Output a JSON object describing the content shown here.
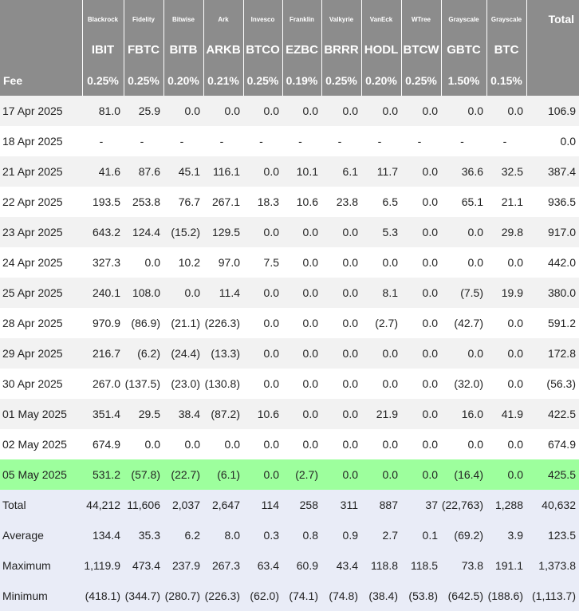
{
  "table": {
    "columns": [
      {
        "provider": "Blackrock",
        "ticker": "IBIT",
        "fee": "0.25%"
      },
      {
        "provider": "Fidelity",
        "ticker": "FBTC",
        "fee": "0.25%"
      },
      {
        "provider": "Bitwise",
        "ticker": "BITB",
        "fee": "0.20%"
      },
      {
        "provider": "Ark",
        "ticker": "ARKB",
        "fee": "0.21%"
      },
      {
        "provider": "Invesco",
        "ticker": "BTCO",
        "fee": "0.25%"
      },
      {
        "provider": "Franklin",
        "ticker": "EZBC",
        "fee": "0.19%"
      },
      {
        "provider": "Valkyrie",
        "ticker": "BRRR",
        "fee": "0.25%"
      },
      {
        "provider": "VanEck",
        "ticker": "HODL",
        "fee": "0.20%"
      },
      {
        "provider": "WTree",
        "ticker": "BTCW",
        "fee": "0.25%"
      },
      {
        "provider": "Grayscale",
        "ticker": "GBTC",
        "fee": "1.50%"
      },
      {
        "provider": "Grayscale",
        "ticker": "BTC",
        "fee": "0.15%"
      }
    ],
    "total_label": "Total",
    "fee_label": "Fee",
    "rows": [
      {
        "date": "17 Apr 2025",
        "values": [
          "81.0",
          "25.9",
          "0.0",
          "0.0",
          "0.0",
          "0.0",
          "0.0",
          "0.0",
          "0.0",
          "0.0",
          "0.0"
        ],
        "total": "106.9"
      },
      {
        "date": "18 Apr 2025",
        "values": [
          "-",
          "-",
          "-",
          "-",
          "-",
          "-",
          "-",
          "-",
          "-",
          "-",
          "-"
        ],
        "total": "0.0"
      },
      {
        "date": "21 Apr 2025",
        "values": [
          "41.6",
          "87.6",
          "45.1",
          "116.1",
          "0.0",
          "10.1",
          "6.1",
          "11.7",
          "0.0",
          "36.6",
          "32.5"
        ],
        "total": "387.4"
      },
      {
        "date": "22 Apr 2025",
        "values": [
          "193.5",
          "253.8",
          "76.7",
          "267.1",
          "18.3",
          "10.6",
          "23.8",
          "6.5",
          "0.0",
          "65.1",
          "21.1"
        ],
        "total": "936.5"
      },
      {
        "date": "23 Apr 2025",
        "values": [
          "643.2",
          "124.4",
          "(15.2)",
          "129.5",
          "0.0",
          "0.0",
          "0.0",
          "5.3",
          "0.0",
          "0.0",
          "29.8"
        ],
        "total": "917.0"
      },
      {
        "date": "24 Apr 2025",
        "values": [
          "327.3",
          "0.0",
          "10.2",
          "97.0",
          "7.5",
          "0.0",
          "0.0",
          "0.0",
          "0.0",
          "0.0",
          "0.0"
        ],
        "total": "442.0"
      },
      {
        "date": "25 Apr 2025",
        "values": [
          "240.1",
          "108.0",
          "0.0",
          "11.4",
          "0.0",
          "0.0",
          "0.0",
          "8.1",
          "0.0",
          "(7.5)",
          "19.9"
        ],
        "total": "380.0"
      },
      {
        "date": "28 Apr 2025",
        "values": [
          "970.9",
          "(86.9)",
          "(21.1)",
          "(226.3)",
          "0.0",
          "0.0",
          "0.0",
          "(2.7)",
          "0.0",
          "(42.7)",
          "0.0"
        ],
        "total": "591.2"
      },
      {
        "date": "29 Apr 2025",
        "values": [
          "216.7",
          "(6.2)",
          "(24.4)",
          "(13.3)",
          "0.0",
          "0.0",
          "0.0",
          "0.0",
          "0.0",
          "0.0",
          "0.0"
        ],
        "total": "172.8"
      },
      {
        "date": "30 Apr 2025",
        "values": [
          "267.0",
          "(137.5)",
          "(23.0)",
          "(130.8)",
          "0.0",
          "0.0",
          "0.0",
          "0.0",
          "0.0",
          "(32.0)",
          "0.0"
        ],
        "total": "(56.3)"
      },
      {
        "date": "01 May 2025",
        "values": [
          "351.4",
          "29.5",
          "38.4",
          "(87.2)",
          "10.6",
          "0.0",
          "0.0",
          "21.9",
          "0.0",
          "16.0",
          "41.9"
        ],
        "total": "422.5"
      },
      {
        "date": "02 May 2025",
        "values": [
          "674.9",
          "0.0",
          "0.0",
          "0.0",
          "0.0",
          "0.0",
          "0.0",
          "0.0",
          "0.0",
          "0.0",
          "0.0"
        ],
        "total": "674.9"
      },
      {
        "date": "05 May 2025",
        "values": [
          "531.2",
          "(57.8)",
          "(22.7)",
          "(6.1)",
          "0.0",
          "(2.7)",
          "0.0",
          "0.0",
          "0.0",
          "(16.4)",
          "0.0"
        ],
        "total": "425.5",
        "highlight": true
      }
    ],
    "stats": [
      {
        "label": "Total",
        "values": [
          "44,212",
          "11,606",
          "2,037",
          "2,647",
          "114",
          "258",
          "311",
          "887",
          "37",
          "(22,763)",
          "1,288"
        ],
        "total": "40,632"
      },
      {
        "label": "Average",
        "values": [
          "134.4",
          "35.3",
          "6.2",
          "8.0",
          "0.3",
          "0.8",
          "0.9",
          "2.7",
          "0.1",
          "(69.2)",
          "3.9"
        ],
        "total": "123.5"
      },
      {
        "label": "Maximum",
        "values": [
          "1,119.9",
          "473.4",
          "237.9",
          "267.3",
          "63.4",
          "60.9",
          "43.4",
          "118.8",
          "118.5",
          "73.8",
          "191.1"
        ],
        "total": "1,373.8"
      },
      {
        "label": "Minimum",
        "values": [
          "(418.1)",
          "(344.7)",
          "(280.7)",
          "(226.3)",
          "(62.0)",
          "(74.1)",
          "(74.8)",
          "(38.4)",
          "(53.8)",
          "(642.5)",
          "(188.6)"
        ],
        "total": "(1,113.7)"
      }
    ]
  },
  "colors": {
    "header_bg": "#8c8c8c",
    "row_alt_bg": "#f2f2f2",
    "highlight_bg": "#9dff9d",
    "stats_bg": "#e9ecf7",
    "negative": "#e0201c"
  }
}
